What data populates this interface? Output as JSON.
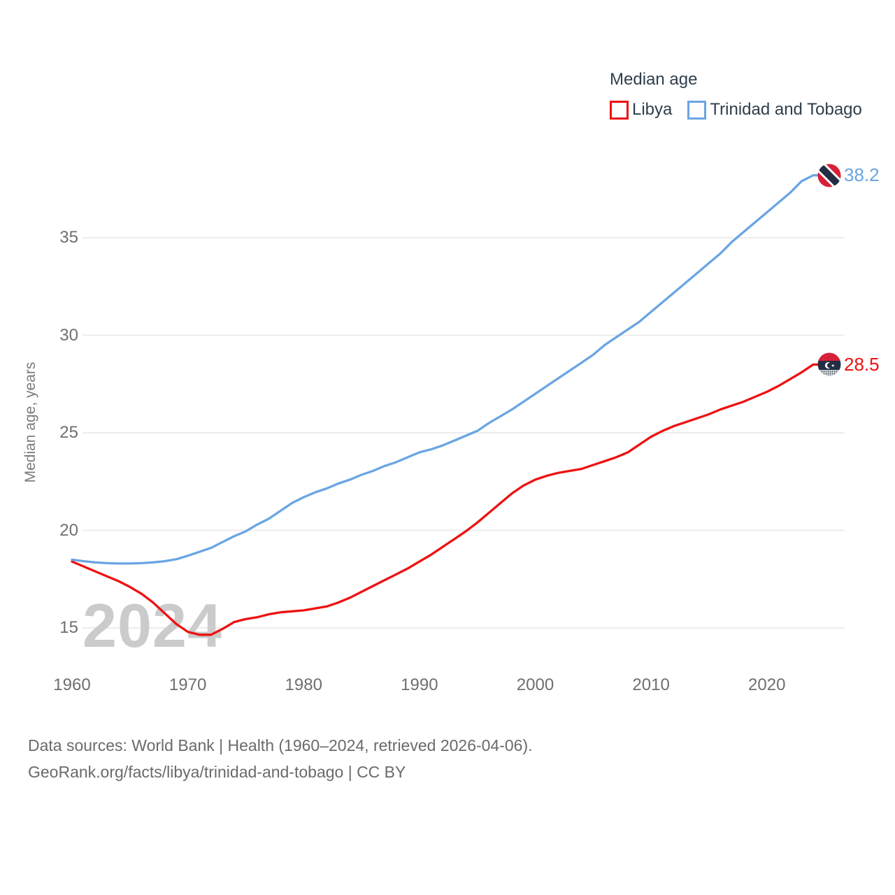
{
  "legend": {
    "title": "Median age",
    "series": [
      {
        "label": "Libya",
        "color": "#ee1111"
      },
      {
        "label": "Trinidad and Tobago",
        "color": "#6aa5e3"
      }
    ]
  },
  "y_axis": {
    "title": "Median age, years",
    "ticks": [
      "15",
      "20",
      "25",
      "30",
      "35"
    ]
  },
  "x_axis": {
    "ticks": [
      "1960",
      "1970",
      "1980",
      "1990",
      "2000",
      "2010",
      "2020"
    ]
  },
  "end_labels": {
    "libya": "28.5",
    "trinidad": "38.2"
  },
  "end_markers": {
    "libya": "libya-flag-icon",
    "trinidad": "trinidad-tobago-flag-icon"
  },
  "watermark": "2024",
  "footer": {
    "line1": "Data sources: World Bank | Health (1960–2024, retrieved 2026-04-06).",
    "line2": "GeoRank.org/facts/libya/trinidad-and-tobago | CC BY"
  },
  "colors": {
    "grid": "#ececec",
    "tick_text": "#6f6f6f",
    "legend_text": "#2f3e4c",
    "footer_text": "#6a6a6a",
    "watermark": "#cbcbcb"
  },
  "chart_data": {
    "type": "line",
    "title": "Median age",
    "ylabel": "Median age, years",
    "xlabel": "",
    "x_range": [
      1960,
      2024
    ],
    "x_step": 1,
    "x_ticks": [
      1960,
      1970,
      1980,
      1990,
      2000,
      2010,
      2020
    ],
    "y_ticks": [
      15,
      20,
      25,
      30,
      35
    ],
    "ylim": [
      13.5,
      39.5
    ],
    "grid": "horizontal",
    "legend_position": "top-right",
    "series": [
      {
        "name": "Libya",
        "color": "#ee1111",
        "end_label": 28.5,
        "values": [
          18.4,
          18.15,
          17.9,
          17.65,
          17.4,
          17.1,
          16.75,
          16.3,
          15.75,
          15.2,
          14.8,
          14.65,
          14.65,
          14.95,
          15.3,
          15.45,
          15.55,
          15.7,
          15.8,
          15.85,
          15.9,
          16.0,
          16.1,
          16.3,
          16.55,
          16.85,
          17.15,
          17.45,
          17.75,
          18.05,
          18.4,
          18.75,
          19.15,
          19.55,
          19.95,
          20.4,
          20.9,
          21.4,
          21.9,
          22.3,
          22.6,
          22.8,
          22.95,
          23.05,
          23.15,
          23.35,
          23.55,
          23.75,
          24.0,
          24.4,
          24.8,
          25.1,
          25.35,
          25.55,
          25.75,
          25.95,
          26.2,
          26.4,
          26.6,
          26.85,
          27.1,
          27.4,
          27.75,
          28.1,
          28.5
        ]
      },
      {
        "name": "Trinidad and Tobago",
        "color": "#6aa5e3",
        "end_label": 38.2,
        "values": [
          18.5,
          18.42,
          18.36,
          18.32,
          18.3,
          18.3,
          18.32,
          18.36,
          18.42,
          18.52,
          18.7,
          18.9,
          19.1,
          19.4,
          19.7,
          19.95,
          20.3,
          20.6,
          21.0,
          21.4,
          21.7,
          21.95,
          22.15,
          22.4,
          22.6,
          22.85,
          23.05,
          23.3,
          23.5,
          23.75,
          24.0,
          24.15,
          24.35,
          24.6,
          24.85,
          25.1,
          25.5,
          25.85,
          26.2,
          26.6,
          27.0,
          27.4,
          27.8,
          28.2,
          28.6,
          29.0,
          29.5,
          29.9,
          30.3,
          30.7,
          31.2,
          31.7,
          32.2,
          32.7,
          33.2,
          33.7,
          34.2,
          34.8,
          35.3,
          35.8,
          36.3,
          36.8,
          37.3,
          37.9,
          38.2
        ]
      }
    ]
  }
}
